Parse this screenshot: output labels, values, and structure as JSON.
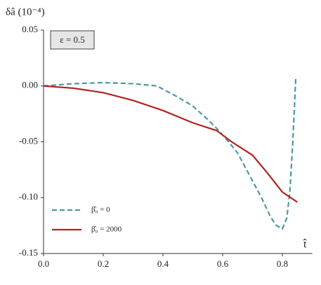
{
  "chart_data": {
    "type": "line",
    "y_label": "δâ (10⁻⁴)",
    "x_label": "t̂",
    "annotation": "ε = 0.5",
    "legend": "lower left",
    "xlim": [
      0,
      0.9
    ],
    "ylim": [
      -0.15,
      0.05
    ],
    "xticks": [
      {
        "value": 0,
        "label": "0.0"
      },
      0.2,
      0.4,
      0.6,
      0.8
    ],
    "yticks": [
      0.05,
      {
        "value": 0,
        "label": "0.00"
      },
      -0.05,
      {
        "value": -0.1,
        "label": "-0.10"
      },
      -0.15
    ],
    "series": [
      {
        "name": "β̂₀ = 0",
        "color": "#4a9a9a",
        "dashed": true,
        "x": [
          0,
          0.1,
          0.2,
          0.3,
          0.38,
          0.45,
          0.5,
          0.55,
          0.58,
          0.62,
          0.65,
          0.7,
          0.73,
          0.76,
          0.78,
          0.8,
          0.815,
          0.825,
          0.835,
          0.845
        ],
        "values": [
          0,
          0.002,
          0.003,
          0.002,
          0,
          -0.01,
          -0.018,
          -0.03,
          -0.038,
          -0.05,
          -0.06,
          -0.085,
          -0.1,
          -0.117,
          -0.125,
          -0.128,
          -0.118,
          -0.095,
          -0.05,
          0.008
        ]
      },
      {
        "name": "β̂₀ = 2000",
        "color": "#b22222",
        "dashed": false,
        "x": [
          0,
          0.1,
          0.2,
          0.3,
          0.4,
          0.5,
          0.58,
          0.63,
          0.7,
          0.75,
          0.8,
          0.85
        ],
        "values": [
          0,
          -0.002,
          -0.006,
          -0.013,
          -0.022,
          -0.033,
          -0.04,
          -0.05,
          -0.062,
          -0.078,
          -0.095,
          -0.104
        ]
      }
    ]
  }
}
